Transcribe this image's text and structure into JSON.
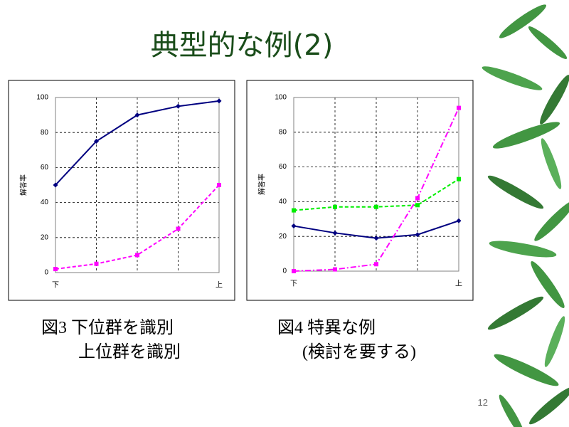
{
  "slide_title": "典型的な例(2)",
  "captions": [
    [
      "図3 下位群を識別",
      "上位群を識別"
    ],
    [
      "図4 特異な例",
      "(検討を要する)"
    ]
  ],
  "page_number": "12",
  "chart_data": [
    {
      "type": "line",
      "ylabel": "解答率",
      "categories": [
        "下",
        null,
        null,
        null,
        "上"
      ],
      "ylim": [
        0,
        100
      ],
      "yticks": [
        0,
        20,
        40,
        60,
        80,
        100
      ],
      "grid": true,
      "series": [
        {
          "color": "#000080",
          "line_style": "solid",
          "marker": "diamond",
          "values": [
            50,
            75,
            90,
            95,
            98
          ]
        },
        {
          "color": "#ff00ff",
          "line_style": "dashed",
          "marker": "square",
          "values": [
            2,
            5,
            10,
            25,
            50
          ]
        }
      ]
    },
    {
      "type": "line",
      "ylabel": "解答率",
      "categories": [
        "下",
        null,
        null,
        null,
        "上"
      ],
      "ylim": [
        0,
        100
      ],
      "yticks": [
        0,
        20,
        40,
        60,
        80,
        100
      ],
      "grid": true,
      "series": [
        {
          "color": "#000080",
          "line_style": "solid",
          "marker": "diamond",
          "values": [
            26,
            22,
            19,
            21,
            29
          ]
        },
        {
          "color": "#00ee00",
          "line_style": "dashed",
          "marker": "square",
          "values": [
            35,
            37,
            37,
            38,
            53
          ]
        },
        {
          "color": "#ff00ff",
          "line_style": "dashdot",
          "marker": "square",
          "values": [
            0,
            1,
            4,
            42,
            94
          ]
        }
      ]
    }
  ]
}
